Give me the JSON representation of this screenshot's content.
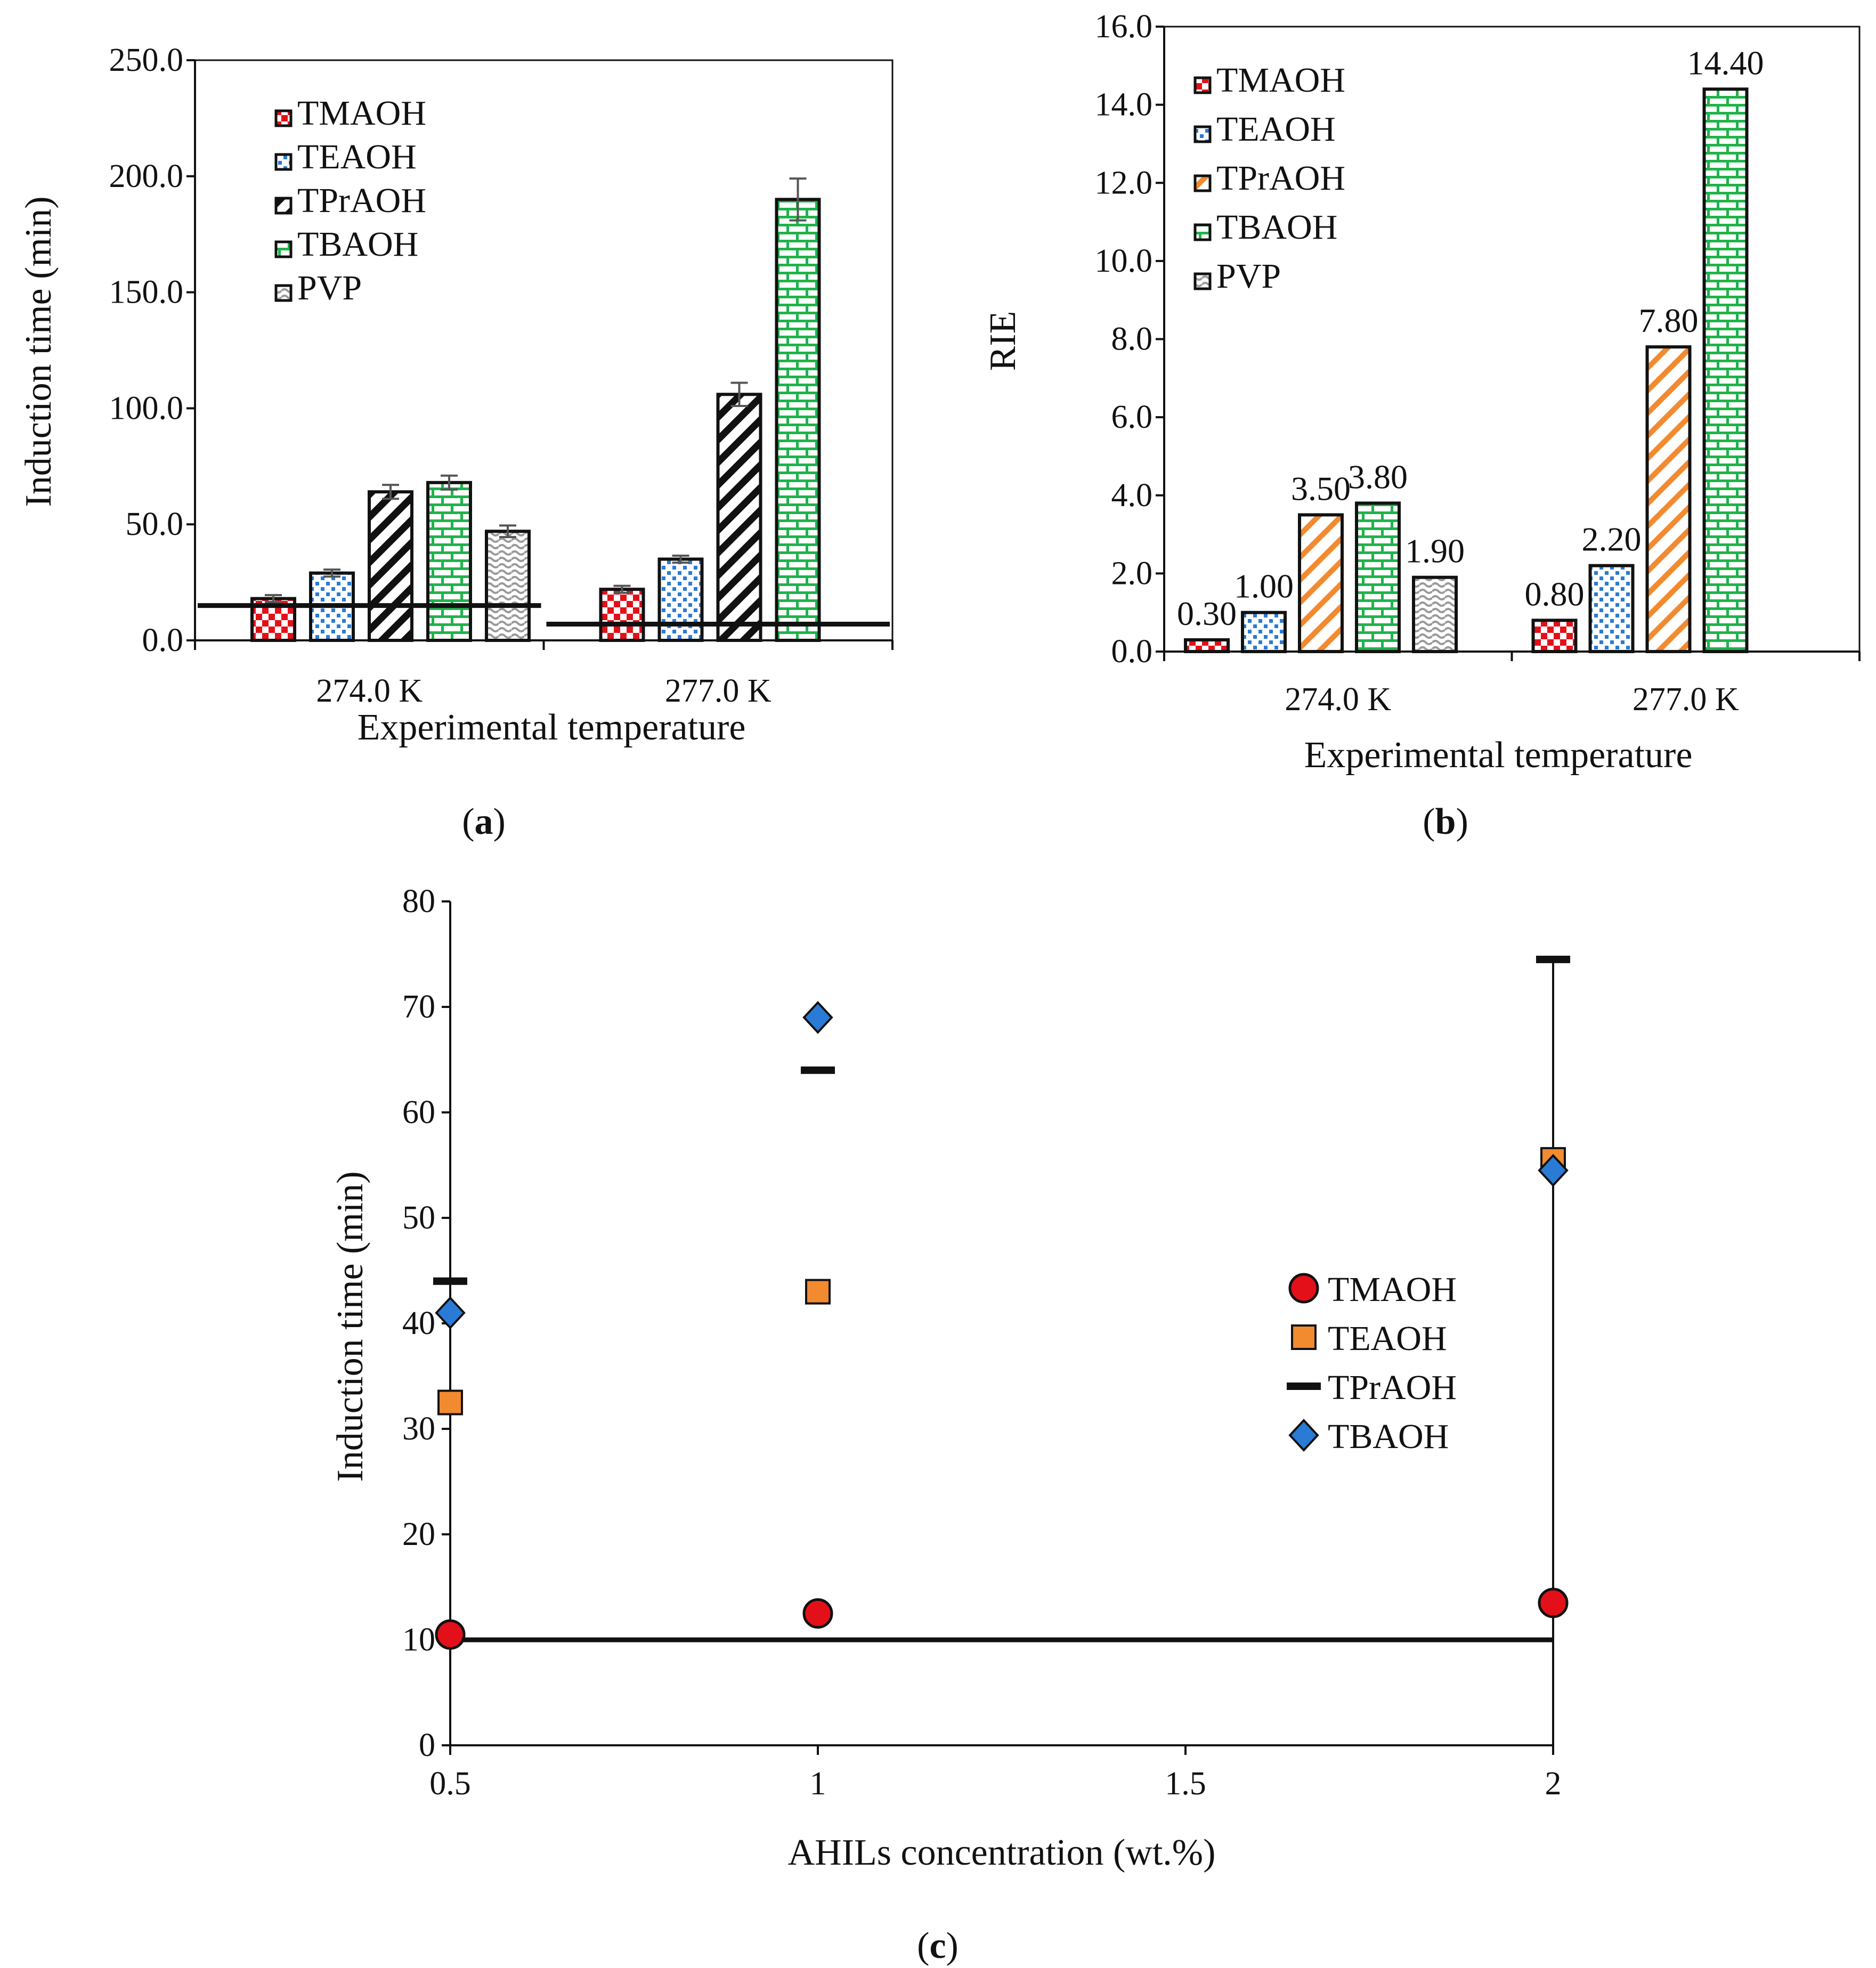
{
  "chart_data": [
    {
      "panel": "a",
      "type": "bar",
      "title": "",
      "xlabel": "Experimental temperature",
      "ylabel": "Induction time (min)",
      "ylim": [
        0,
        250
      ],
      "yticks": [
        "0.0",
        "50.0",
        "100.0",
        "150.0",
        "200.0",
        "250.0"
      ],
      "categories": [
        "274.0 K",
        "277.0 K"
      ],
      "series": [
        {
          "name": "TMAOH",
          "values": [
            18,
            22
          ],
          "errors": [
            1.5,
            1.5
          ],
          "color": "#e3101a",
          "pattern": "checker"
        },
        {
          "name": "TEAOH",
          "values": [
            29,
            35
          ],
          "errors": [
            1.5,
            1.5
          ],
          "color": "#2a7bd6",
          "pattern": "dots"
        },
        {
          "name": "TPrAOH",
          "values": [
            64,
            106
          ],
          "errors": [
            3,
            5
          ],
          "color": "#111111",
          "pattern": "diagonal"
        },
        {
          "name": "TBAOH",
          "values": [
            68,
            190
          ],
          "errors": [
            3,
            9
          ],
          "color": "#20b34a",
          "pattern": "brick"
        },
        {
          "name": "PVP",
          "values": [
            47,
            null
          ],
          "errors": [
            2.5,
            null
          ],
          "color": "#9a9a9a",
          "pattern": "wave"
        }
      ],
      "reference_lines": [
        {
          "category": "274.0 K",
          "value": 15
        },
        {
          "category": "277.0 K",
          "value": 7
        }
      ],
      "legend": "top-left",
      "panel_label": "a"
    },
    {
      "panel": "b",
      "type": "bar",
      "title": "",
      "xlabel": "Experimental temperature",
      "ylabel": "RIE",
      "ylim": [
        0,
        16
      ],
      "yticks": [
        "0.0",
        "2.0",
        "4.0",
        "6.0",
        "8.0",
        "10.0",
        "12.0",
        "14.0",
        "16.0"
      ],
      "categories": [
        "274.0 K",
        "277.0 K"
      ],
      "series": [
        {
          "name": "TMAOH",
          "values": [
            0.3,
            0.8
          ],
          "labels": [
            "0.30",
            "0.80"
          ],
          "color": "#e3101a",
          "pattern": "checker"
        },
        {
          "name": "TEAOH",
          "values": [
            1.0,
            2.2
          ],
          "labels": [
            "1.00",
            "2.20"
          ],
          "color": "#2a7bd6",
          "pattern": "dots"
        },
        {
          "name": "TPrAOH",
          "values": [
            3.5,
            7.8
          ],
          "labels": [
            "3.50",
            "7.80"
          ],
          "color": "#f28a30",
          "pattern": "diagonal"
        },
        {
          "name": "TBAOH",
          "values": [
            3.8,
            14.4
          ],
          "labels": [
            "3.80",
            "14.40"
          ],
          "color": "#20b34a",
          "pattern": "brick"
        },
        {
          "name": "PVP",
          "values": [
            1.9,
            null
          ],
          "labels": [
            "1.90",
            ""
          ],
          "color": "#9a9a9a",
          "pattern": "wave"
        }
      ],
      "legend": "top-left",
      "panel_label": "b"
    },
    {
      "panel": "c",
      "type": "scatter",
      "title": "",
      "xlabel": "AHILs concentration (wt.%)",
      "ylabel": "Induction time (min)",
      "xlim": [
        0.5,
        2
      ],
      "ylim": [
        0,
        80
      ],
      "xticks": [
        "0.5",
        "1",
        "1.5",
        "2"
      ],
      "yticks": [
        "0",
        "10",
        "20",
        "30",
        "40",
        "50",
        "60",
        "70",
        "80"
      ],
      "series": [
        {
          "name": "TMAOH",
          "x": [
            0.5,
            1,
            2
          ],
          "y": [
            10.5,
            12.5,
            13.5
          ],
          "marker": "circle",
          "color": "#e3101a"
        },
        {
          "name": "TEAOH",
          "x": [
            0.5,
            1,
            2
          ],
          "y": [
            32.5,
            43,
            55.5
          ],
          "marker": "square",
          "color": "#f28a30"
        },
        {
          "name": "TPrAOH",
          "x": [
            0.5,
            1,
            2
          ],
          "y": [
            44,
            64,
            74.5
          ],
          "marker": "dash",
          "color": "#111111"
        },
        {
          "name": "TBAOH",
          "x": [
            0.5,
            1,
            2
          ],
          "y": [
            41,
            69,
            54.5
          ],
          "marker": "diamond",
          "color": "#2a7bd6"
        }
      ],
      "reference_lines": [
        {
          "y": 10,
          "from_x": 0.5,
          "to_x": 2
        }
      ],
      "legend": "right",
      "panel_label": "c"
    }
  ],
  "panel_labels": [
    {
      "open": "(",
      "letter": "a",
      "close": ")"
    },
    {
      "open": "(",
      "letter": "b",
      "close": ")"
    },
    {
      "open": "(",
      "letter": "c",
      "close": ")"
    }
  ]
}
